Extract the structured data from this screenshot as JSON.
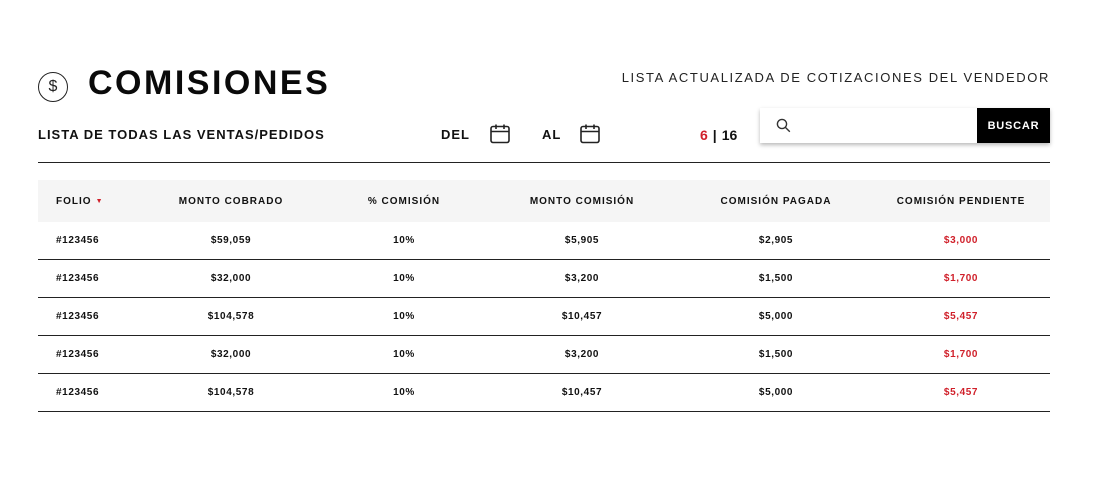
{
  "header": {
    "icon_glyph": "$",
    "icon_name": "dollar-circle-icon",
    "title": "COMISIONES",
    "subtitle": "LISTA ACTUALIZADA DE COTIZACIONES DEL VENDEDOR"
  },
  "filters": {
    "list_label": "LISTA DE TODAS LAS VENTAS/PEDIDOS",
    "from_label": "DEL",
    "to_label": "AL",
    "calendar_icon": "calendar-icon",
    "page_current": "6",
    "page_separator": "|",
    "page_total": "16"
  },
  "search": {
    "icon": "search-icon",
    "value": "",
    "placeholder": "",
    "button_label": "BUSCAR"
  },
  "colors": {
    "accent": "#d0202a",
    "header_bg": "#f5f5f5",
    "button_bg": "#000000"
  },
  "table": {
    "columns": [
      "FOLIO",
      "MONTO COBRADO",
      "% COMISIÓN",
      "MONTO COMISIÓN",
      "COMISIÓN PAGADA",
      "COMISIÓN PENDIENTE"
    ],
    "sort_indicator": "▼",
    "rows": [
      [
        "#123456",
        "$59,059",
        "10%",
        "$5,905",
        "$2,905",
        "$3,000"
      ],
      [
        "#123456",
        "$32,000",
        "10%",
        "$3,200",
        "$1,500",
        "$1,700"
      ],
      [
        "#123456",
        "$104,578",
        "10%",
        "$10,457",
        "$5,000",
        "$5,457"
      ],
      [
        "#123456",
        "$32,000",
        "10%",
        "$3,200",
        "$1,500",
        "$1,700"
      ],
      [
        "#123456",
        "$104,578",
        "10%",
        "$10,457",
        "$5,000",
        "$5,457"
      ]
    ]
  }
}
